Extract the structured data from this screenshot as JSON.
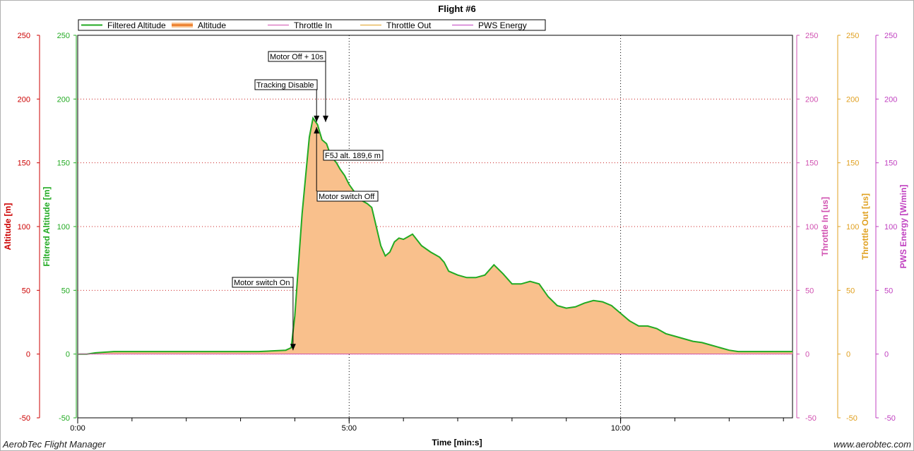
{
  "chart_data": {
    "type": "area",
    "title": "Flight #6",
    "xlabel": "Time [min:s]",
    "x_ticks": [
      "0:00",
      "5:00",
      "10:00"
    ],
    "xlim_sec": [
      0,
      790
    ],
    "legend": {
      "placement": "top-left",
      "entries": [
        {
          "name": "Filtered Altitude",
          "color": "#22aa22"
        },
        {
          "name": "Altitude",
          "color": "#e86a10"
        },
        {
          "name": "Throttle In",
          "color": "#d050b0"
        },
        {
          "name": "Throttle Out",
          "color": "#e0a020"
        },
        {
          "name": "PWS Energy",
          "color": "#c040c0"
        }
      ]
    },
    "axes": [
      {
        "label": "Altitude [m]",
        "side": "left",
        "color": "#cc0000",
        "ylim": [
          -50,
          250
        ],
        "ticks": [
          "-50",
          "0",
          "50",
          "100",
          "150",
          "200",
          "250"
        ]
      },
      {
        "label": "Filtered Altitude [m]",
        "side": "left",
        "color": "#22aa22",
        "ylim": [
          -50,
          250
        ],
        "ticks": [
          "-50",
          "0",
          "50",
          "100",
          "150",
          "200",
          "250"
        ]
      },
      {
        "label": "Throttle In [us]",
        "side": "right",
        "color": "#d050b0",
        "ylim": [
          -50,
          250
        ],
        "ticks": [
          "-50",
          "0",
          "50",
          "100",
          "150",
          "200",
          "250"
        ]
      },
      {
        "label": "Throttle Out [us]",
        "side": "right",
        "color": "#e0a020",
        "ylim": [
          -50,
          250
        ],
        "ticks": [
          "-50",
          "0",
          "50",
          "100",
          "150",
          "200",
          "250"
        ]
      },
      {
        "label": "PWS Energy [W/min]",
        "side": "right",
        "color": "#c040c0",
        "ylim": [
          -50,
          250
        ],
        "ticks": [
          "-50",
          "0",
          "50",
          "100",
          "150",
          "200",
          "250"
        ]
      }
    ],
    "grid": true,
    "series": [
      {
        "name": "Filtered Altitude",
        "x_sec": [
          0,
          10,
          20,
          40,
          60,
          80,
          100,
          150,
          200,
          230,
          236,
          240,
          245,
          248,
          252,
          256,
          260,
          265,
          270,
          275,
          280,
          286,
          290,
          295,
          300,
          305,
          310,
          315,
          320,
          325,
          330,
          335,
          340,
          345,
          350,
          355,
          360,
          365,
          370,
          380,
          390,
          395,
          400,
          405,
          410,
          420,
          430,
          440,
          450,
          460,
          470,
          480,
          490,
          500,
          510,
          520,
          530,
          540,
          550,
          560,
          570,
          580,
          590,
          600,
          610,
          620,
          630,
          640,
          650,
          660,
          670,
          680,
          690,
          700,
          710,
          720,
          730,
          740,
          750,
          760,
          765,
          770,
          775,
          780,
          790
        ],
        "values": [
          0,
          0,
          1,
          2,
          2,
          2,
          2,
          2,
          2,
          3,
          5,
          30,
          80,
          110,
          140,
          170,
          185,
          180,
          168,
          165,
          155,
          150,
          145,
          140,
          133,
          128,
          123,
          120,
          118,
          115,
          100,
          85,
          77,
          80,
          88,
          91,
          90,
          92,
          94,
          85,
          80,
          78,
          76,
          72,
          65,
          62,
          60,
          60,
          62,
          70,
          63,
          55,
          55,
          57,
          55,
          45,
          38,
          36,
          37,
          40,
          42,
          41,
          38,
          32,
          26,
          22,
          22,
          20,
          16,
          14,
          12,
          10,
          9,
          7,
          5,
          3,
          2,
          2,
          2,
          2,
          2,
          2,
          2,
          2,
          2
        ]
      },
      {
        "name": "Throttle In",
        "constant": 0
      },
      {
        "name": "Throttle Out",
        "constant": 0
      },
      {
        "name": "PWS Energy",
        "constant": 0
      }
    ],
    "annotations": [
      {
        "text": "Motor switch On",
        "x_sec": 238,
        "y": 3
      },
      {
        "text": "Tracking Disable",
        "x_sec": 264,
        "y": 182
      },
      {
        "text": "Motor Off + 10s",
        "x_sec": 274,
        "y": 182
      },
      {
        "text": "F5J alt. 189,6 m",
        "x_sec": 270,
        "y": 190
      },
      {
        "text": "Motor switch Off",
        "x_sec": 264,
        "y": 178
      }
    ]
  },
  "footer": {
    "left": "AerobTec Flight Manager",
    "right": "www.aerobtec.com"
  }
}
